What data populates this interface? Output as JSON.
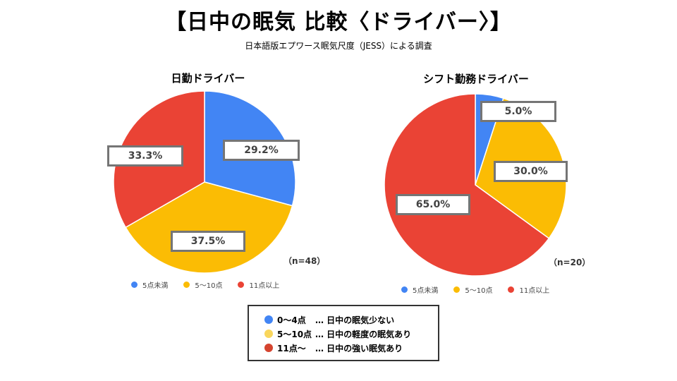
{
  "header": {
    "title": "【日中の眠気 比較〈ドライバー〉】",
    "subtitle": "日本語版エプワース眠気尺度（JESS）による調査"
  },
  "chart_data": [
    {
      "type": "pie",
      "title": "日勤ドライバー",
      "n_label": "（n=48）",
      "categories": [
        "5点未満",
        "5〜10点",
        "11点以上"
      ],
      "values": [
        29.2,
        37.5,
        33.3
      ],
      "value_labels": [
        "29.2%",
        "37.5%",
        "33.3%"
      ],
      "colors": [
        "#4285F4",
        "#FBBC04",
        "#EA4335"
      ],
      "legend": [
        "5点未満",
        "5〜10点",
        "11点以上"
      ],
      "legend_position": "bottom"
    },
    {
      "type": "pie",
      "title": "シフト勤務ドライバー",
      "n_label": "（n=20）",
      "categories": [
        "5点未満",
        "5〜10点",
        "11点以上"
      ],
      "values": [
        5.0,
        30.0,
        65.0
      ],
      "value_labels": [
        "5.0%",
        "30.0%",
        "65.0%"
      ],
      "colors": [
        "#4285F4",
        "#FBBC04",
        "#EA4335"
      ],
      "legend": [
        "5点未満",
        "5〜10点",
        "11点以上"
      ],
      "legend_position": "bottom"
    }
  ],
  "key": {
    "rows": [
      {
        "range": "0〜4点",
        "desc": "… 日中の眠気少ない",
        "color": "#4285F4"
      },
      {
        "range": "5〜10点",
        "desc": "… 日中の軽度の眠気あり",
        "color": "#F9D65C"
      },
      {
        "range": "11点〜",
        "desc": "… 日中の強い眠気あり",
        "color": "#D5442F"
      }
    ]
  }
}
